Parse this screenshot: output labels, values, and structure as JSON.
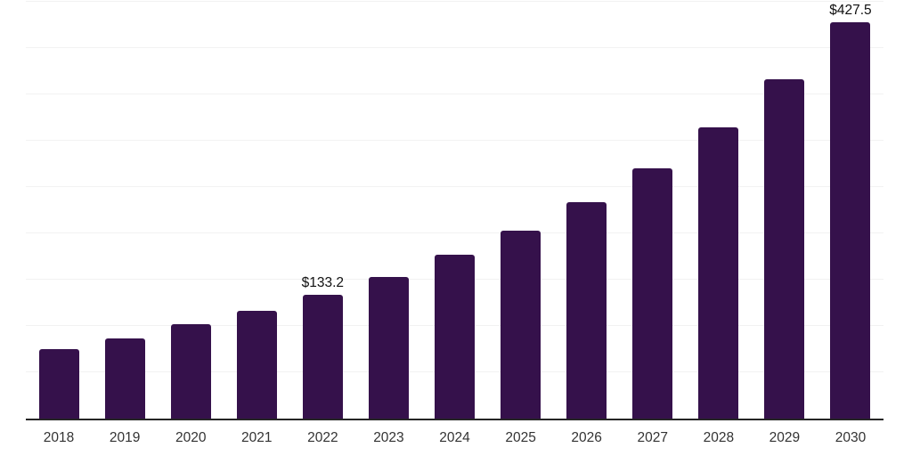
{
  "chart_data": {
    "type": "bar",
    "title": "",
    "xlabel": "",
    "ylabel": "",
    "categories": [
      "2018",
      "2019",
      "2020",
      "2021",
      "2022",
      "2023",
      "2024",
      "2025",
      "2026",
      "2027",
      "2028",
      "2029",
      "2030"
    ],
    "values": [
      75,
      86.5,
      102,
      116,
      133.2,
      153,
      177,
      203,
      234,
      270,
      314,
      366,
      427.5
    ],
    "data_labels": [
      "",
      "",
      "",
      "",
      "$133.2",
      "",
      "",
      "",
      "",
      "",
      "",
      "",
      "$427.5"
    ],
    "ylim": [
      0,
      450
    ],
    "grid_step": 50,
    "grid": "horizontal-only",
    "legend": "none",
    "colors": {
      "bar": "#35114b",
      "gridline": "#f2f2f2",
      "axis_line": "#262626",
      "tick_text": "#333333",
      "label_text": "#111111",
      "background": "#ffffff"
    }
  }
}
